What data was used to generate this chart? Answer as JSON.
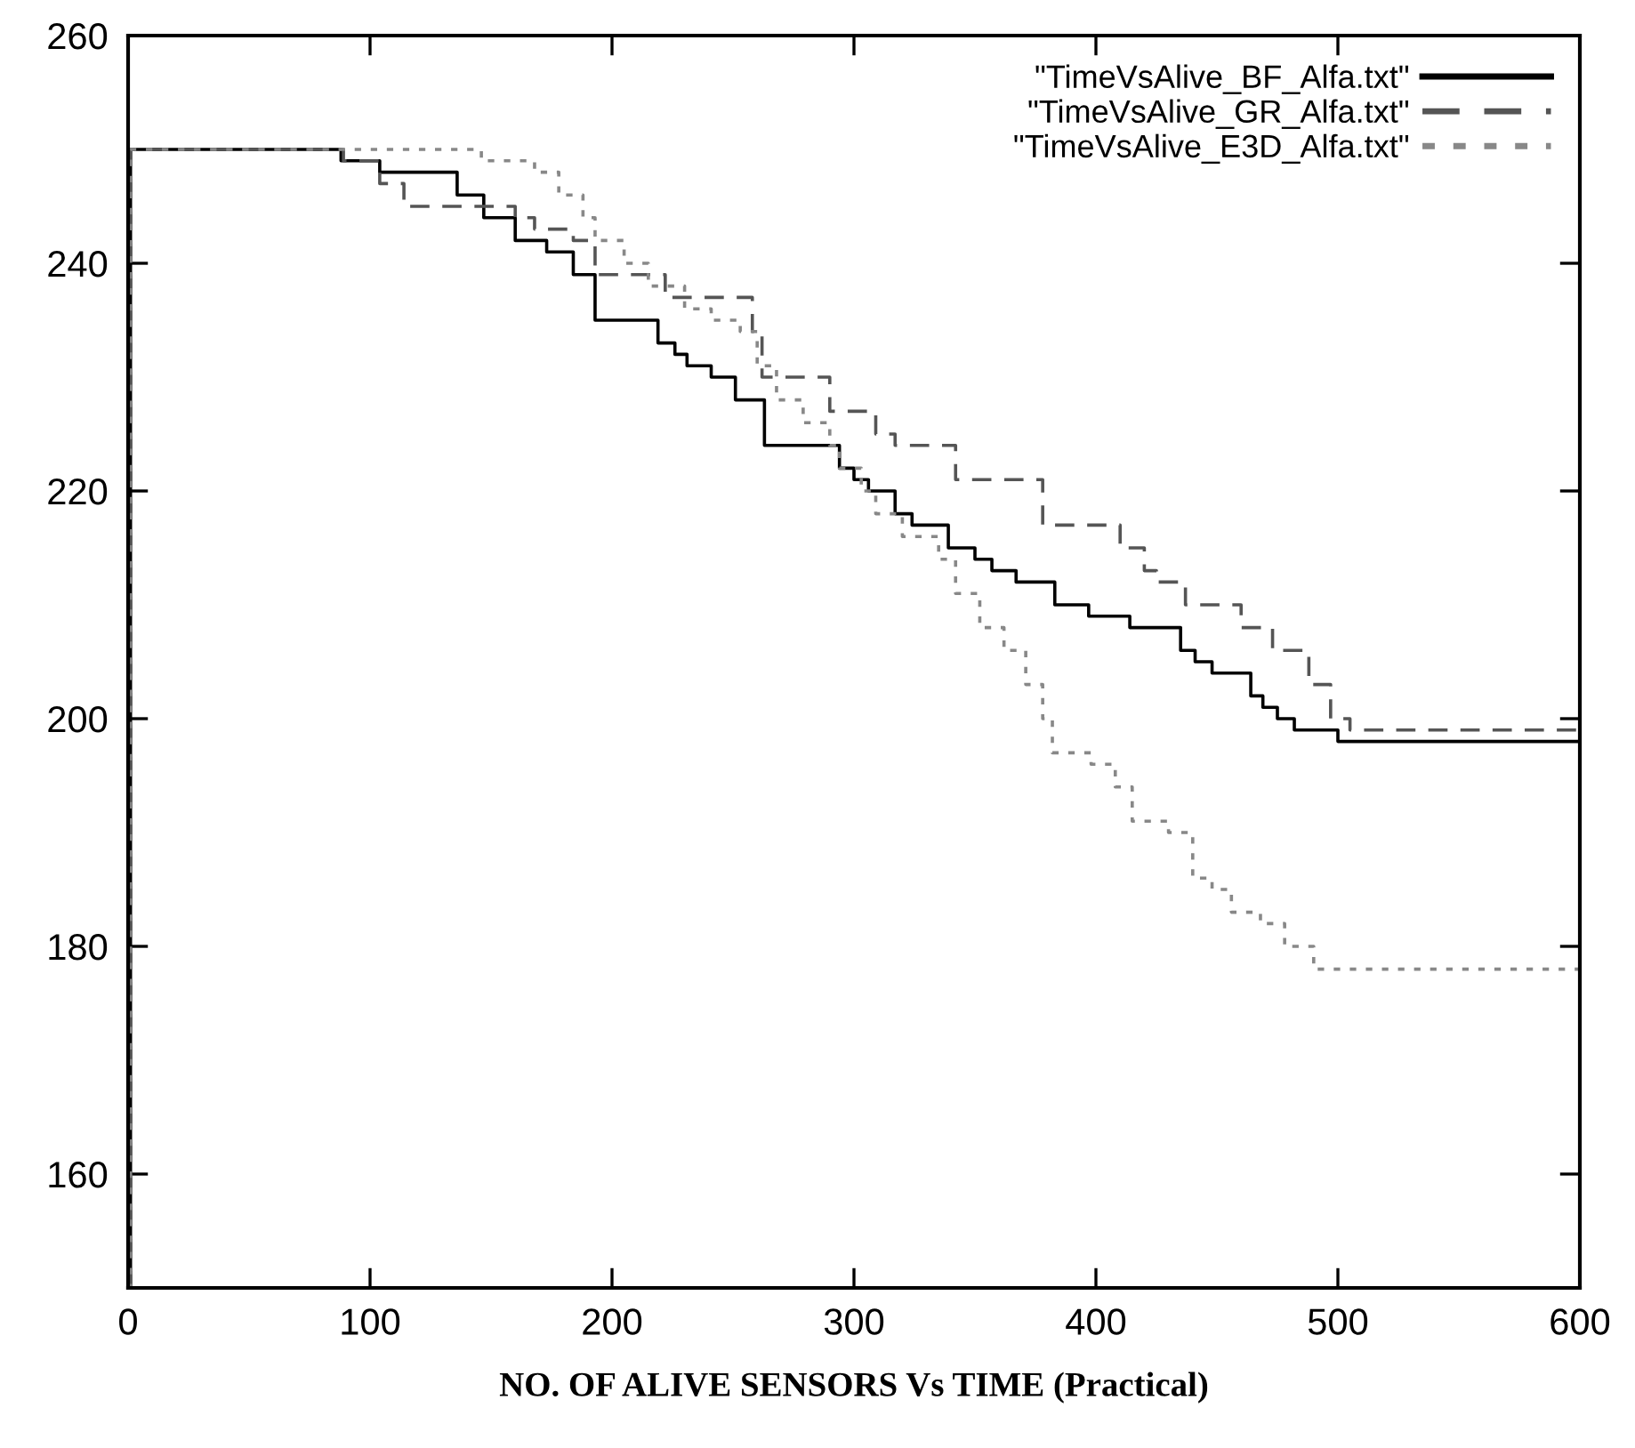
{
  "chart_data": {
    "type": "step",
    "xlabel": "NO. OF ALIVE SENSORS Vs TIME (Practical)",
    "xlim": [
      0,
      600
    ],
    "ylim": [
      150,
      260
    ],
    "xticks": [
      0,
      100,
      200,
      300,
      400,
      500,
      600
    ],
    "yticks": [
      160,
      180,
      200,
      220,
      240,
      260
    ],
    "grid": false,
    "legend": "top right",
    "marker": "none",
    "series": [
      {
        "name": "\"TimeVsAlive_BF_Alfa.txt\"",
        "color": "#000000",
        "line_style": "solid",
        "x": [
          0,
          1,
          88,
          104,
          136,
          147,
          160,
          173,
          184,
          193,
          219,
          226,
          231,
          241,
          251,
          263,
          294,
          300,
          306,
          317,
          324,
          339,
          350,
          357,
          367,
          383,
          397,
          414,
          435,
          441,
          448,
          464,
          469,
          475,
          482,
          500,
          600
        ],
        "values": [
          150,
          250,
          249,
          248,
          246,
          244,
          242,
          241,
          239,
          235,
          233,
          232,
          231,
          230,
          228,
          224,
          222,
          221,
          220,
          218,
          217,
          215,
          214,
          213,
          212,
          210,
          209,
          208,
          206,
          205,
          204,
          202,
          201,
          200,
          199,
          198,
          198
        ]
      },
      {
        "name": "\"TimeVsAlive_GR_Alfa.txt\"",
        "color": "#555555",
        "line_style": "dashed",
        "x": [
          0,
          1,
          89,
          104,
          114,
          160,
          168,
          184,
          193,
          222,
          258,
          262,
          290,
          309,
          317,
          342,
          378,
          410,
          420,
          425,
          437,
          460,
          473,
          488,
          497,
          505,
          600
        ],
        "values": [
          150,
          250,
          249,
          247,
          245,
          244,
          243,
          242,
          239,
          237,
          234,
          230,
          227,
          225,
          224,
          221,
          217,
          215,
          213,
          212,
          210,
          208,
          206,
          203,
          200,
          199,
          199
        ]
      },
      {
        "name": "\"TimeVsAlive_E3D_Alfa.txt\"",
        "color": "#888888",
        "line_style": "dotted",
        "x": [
          0,
          1,
          146,
          168,
          178,
          188,
          193,
          205,
          215,
          230,
          241,
          253,
          260,
          268,
          279,
          290,
          294,
          303,
          309,
          320,
          335,
          342,
          352,
          362,
          371,
          378,
          382,
          398,
          408,
          415,
          430,
          440,
          448,
          456,
          468,
          478,
          490,
          600
        ],
        "values": [
          150,
          250,
          249,
          248,
          246,
          244,
          242,
          240,
          238,
          236,
          235,
          234,
          231,
          228,
          226,
          224,
          222,
          220,
          218,
          216,
          214,
          211,
          208,
          206,
          203,
          200,
          197,
          196,
          194,
          191,
          190,
          186,
          185,
          183,
          182,
          180,
          178,
          178
        ]
      }
    ]
  }
}
